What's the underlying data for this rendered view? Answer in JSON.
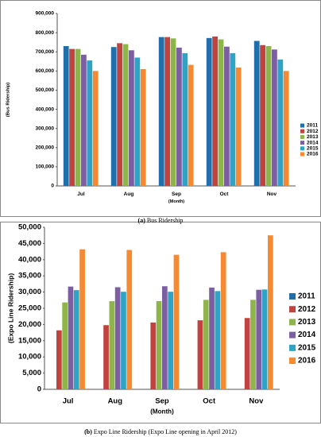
{
  "chart_data": [
    {
      "type": "bar",
      "caption_tag": "(a)",
      "caption": "Bus Ridership",
      "y_label": "(Bus Ridership)",
      "x_label": "(Month)",
      "categories": [
        "Jul",
        "Aug",
        "Sep",
        "Oct",
        "Nov"
      ],
      "series": [
        {
          "name": "2011",
          "color": "#1f6fad",
          "values": [
            730000,
            725000,
            777000,
            772000,
            757000
          ]
        },
        {
          "name": "2012",
          "color": "#c0433f",
          "values": [
            715000,
            745000,
            777000,
            780000,
            735000
          ]
        },
        {
          "name": "2013",
          "color": "#8db54a",
          "values": [
            715000,
            740000,
            770000,
            765000,
            730000
          ]
        },
        {
          "name": "2014",
          "color": "#7c5fa3",
          "values": [
            685000,
            708000,
            722000,
            727000,
            712000
          ]
        },
        {
          "name": "2015",
          "color": "#2ea3c4",
          "values": [
            655000,
            670000,
            693000,
            693000,
            660000
          ]
        },
        {
          "name": "2016",
          "color": "#f58a32",
          "values": [
            600000,
            610000,
            632000,
            618000,
            600000
          ]
        }
      ],
      "ylim": [
        0,
        900000
      ],
      "yticks": [
        0,
        {
          "value": 100000,
          "label": "100,000"
        },
        {
          "value": 200000,
          "label": "200,000"
        },
        {
          "value": 300000,
          "label": "300,000"
        },
        {
          "value": 400000,
          "label": "400,000"
        },
        {
          "value": 500000,
          "label": "500,000"
        },
        {
          "value": 600000,
          "label": "600,000"
        },
        {
          "value": 700000,
          "label": "700,000"
        },
        {
          "value": 800000,
          "label": "800,000"
        },
        {
          "value": 900000,
          "label": "900,000"
        }
      ],
      "grid": false,
      "legend": "right"
    },
    {
      "type": "bar",
      "caption_tag": "(b)",
      "caption": "Expo Line Ridership (Expo Line opening in April 2012)",
      "y_label": "(Expo Line Ridership)",
      "x_label": "(Month)",
      "categories": [
        "Jul",
        "Aug",
        "Sep",
        "Oct",
        "Nov"
      ],
      "series": [
        {
          "name": "2011",
          "color": "#1f6fad",
          "values": [
            0,
            0,
            0,
            0,
            0
          ]
        },
        {
          "name": "2012",
          "color": "#c0433f",
          "values": [
            18200,
            19800,
            20600,
            21300,
            22000
          ]
        },
        {
          "name": "2013",
          "color": "#8db54a",
          "values": [
            26800,
            27200,
            27200,
            27600,
            27600
          ]
        },
        {
          "name": "2014",
          "color": "#7c5fa3",
          "values": [
            31700,
            31500,
            31800,
            31400,
            30700
          ]
        },
        {
          "name": "2015",
          "color": "#2ea3c4",
          "values": [
            30600,
            30100,
            30100,
            30300,
            30800
          ]
        },
        {
          "name": "2016",
          "color": "#f58a32",
          "values": [
            43200,
            43000,
            41500,
            42300,
            47500
          ]
        }
      ],
      "ylim": [
        0,
        50000
      ],
      "yticks": [
        0,
        {
          "value": 5000,
          "label": "5,000"
        },
        {
          "value": 10000,
          "label": "10,000"
        },
        {
          "value": 15000,
          "label": "15,000"
        },
        {
          "value": 20000,
          "label": "20,000"
        },
        {
          "value": 25000,
          "label": "25,000"
        },
        {
          "value": 30000,
          "label": "30,000"
        },
        {
          "value": 35000,
          "label": "35,000"
        },
        {
          "value": 40000,
          "label": "40,000"
        },
        {
          "value": 45000,
          "label": "45,000"
        },
        {
          "value": 50000,
          "label": "50,000"
        }
      ],
      "grid": false,
      "legend": "right"
    }
  ]
}
